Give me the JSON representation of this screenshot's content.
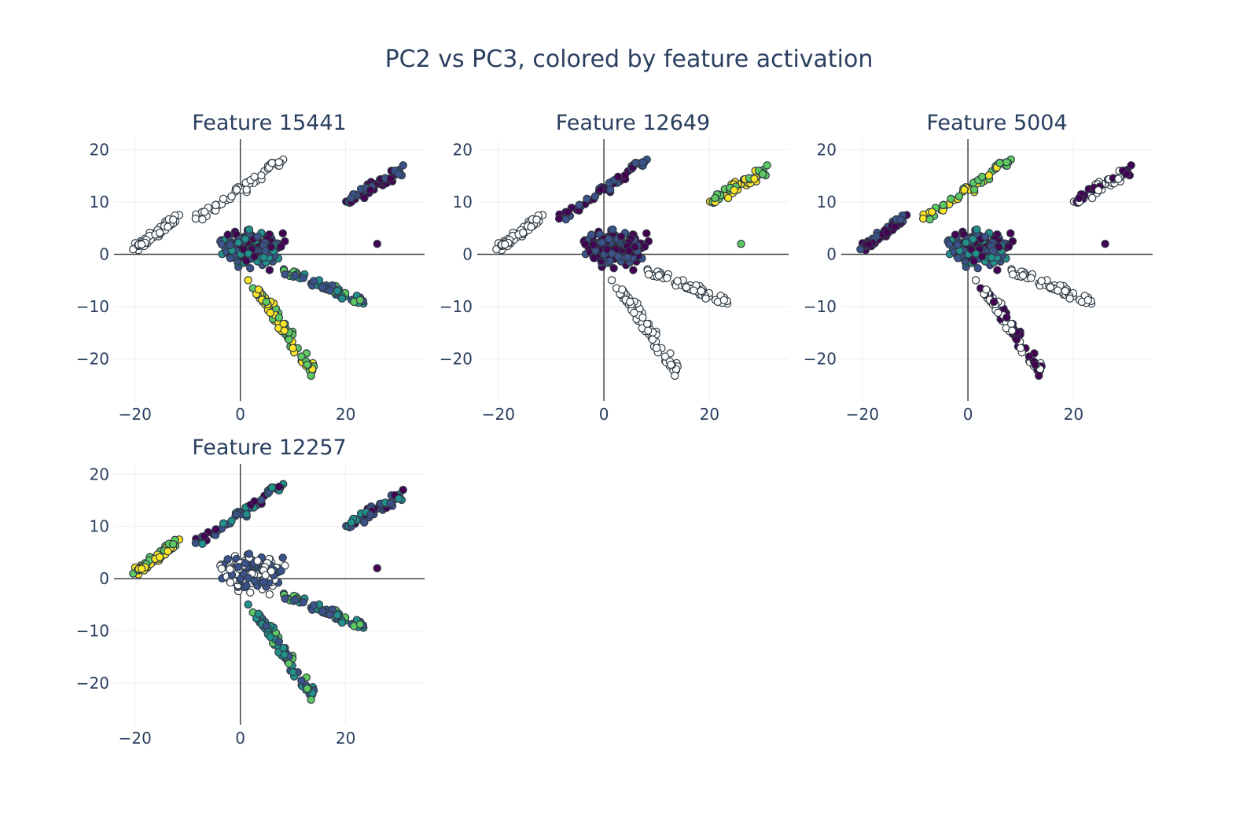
{
  "title": "PC2 vs PC3, colored by feature activation",
  "colors": {
    "axis_line": "#444444",
    "grid": "#eeeeee",
    "tick_text": "#2a3f5f",
    "marker_outline": "#2f3b45",
    "viridis_stops": [
      "#440154",
      "#3b528b",
      "#21918c",
      "#5ec962",
      "#fde725"
    ],
    "inactive_fill": "#ffffff"
  },
  "chart_data": [
    {
      "type": "scatter",
      "title": "Feature 15441",
      "xlabel": "",
      "ylabel": "",
      "xlim": [
        -24,
        35
      ],
      "ylim": [
        -28,
        22
      ],
      "xticks": [
        -20,
        0,
        20
      ],
      "yticks": [
        20,
        10,
        0,
        -10,
        -20
      ],
      "xtick_labels": [
        "−20",
        "0",
        "20"
      ],
      "ytick_labels": [
        "20",
        "10",
        "0",
        "−10",
        "−20"
      ],
      "grid": true,
      "marker_fill_map": {
        "left": "inactive",
        "top": "inactive",
        "right": "low",
        "lower": "mid",
        "bottom": "high",
        "center": "low-mid"
      }
    },
    {
      "type": "scatter",
      "title": "Feature 12649",
      "xlabel": "",
      "ylabel": "",
      "xlim": [
        -24,
        35
      ],
      "ylim": [
        -28,
        22
      ],
      "xticks": [
        -20,
        0,
        20
      ],
      "yticks": [
        20,
        10,
        0,
        -10,
        -20
      ],
      "xtick_labels": [
        "−20",
        "0",
        "20"
      ],
      "ytick_labels": [
        "20",
        "10",
        "0",
        "−10",
        "−20"
      ],
      "grid": true,
      "marker_fill_map": {
        "left": "inactive",
        "top": "low",
        "right": "high",
        "lower": "inactive",
        "bottom": "inactive",
        "center": "low"
      }
    },
    {
      "type": "scatter",
      "title": "Feature 5004",
      "xlabel": "",
      "ylabel": "",
      "xlim": [
        -24,
        35
      ],
      "ylim": [
        -28,
        22
      ],
      "xticks": [
        -20,
        0,
        20
      ],
      "yticks": [
        20,
        10,
        0,
        -10,
        -20
      ],
      "xtick_labels": [
        "−20",
        "0",
        "20"
      ],
      "ytick_labels": [
        "20",
        "10",
        "0",
        "−10",
        "−20"
      ],
      "grid": true,
      "marker_fill_map": {
        "left": "low",
        "top": "high",
        "right": "mixed-low",
        "lower": "inactive",
        "bottom": "mixed-low",
        "center": "low-mid"
      }
    },
    {
      "type": "scatter",
      "title": "Feature 12257",
      "xlabel": "",
      "ylabel": "",
      "xlim": [
        -24,
        35
      ],
      "ylim": [
        -28,
        22
      ],
      "xticks": [
        -20,
        0,
        20
      ],
      "yticks": [
        20,
        10,
        0,
        -10,
        -20
      ],
      "xtick_labels": [
        "−20",
        "0",
        "20"
      ],
      "ytick_labels": [
        "20",
        "10",
        "0",
        "−10",
        "−20"
      ],
      "grid": true,
      "marker_fill_map": {
        "left": "high",
        "top": "low-mid",
        "right": "low-mid",
        "lower": "mid",
        "bottom": "mid",
        "center": "mixed-inactive"
      }
    }
  ]
}
